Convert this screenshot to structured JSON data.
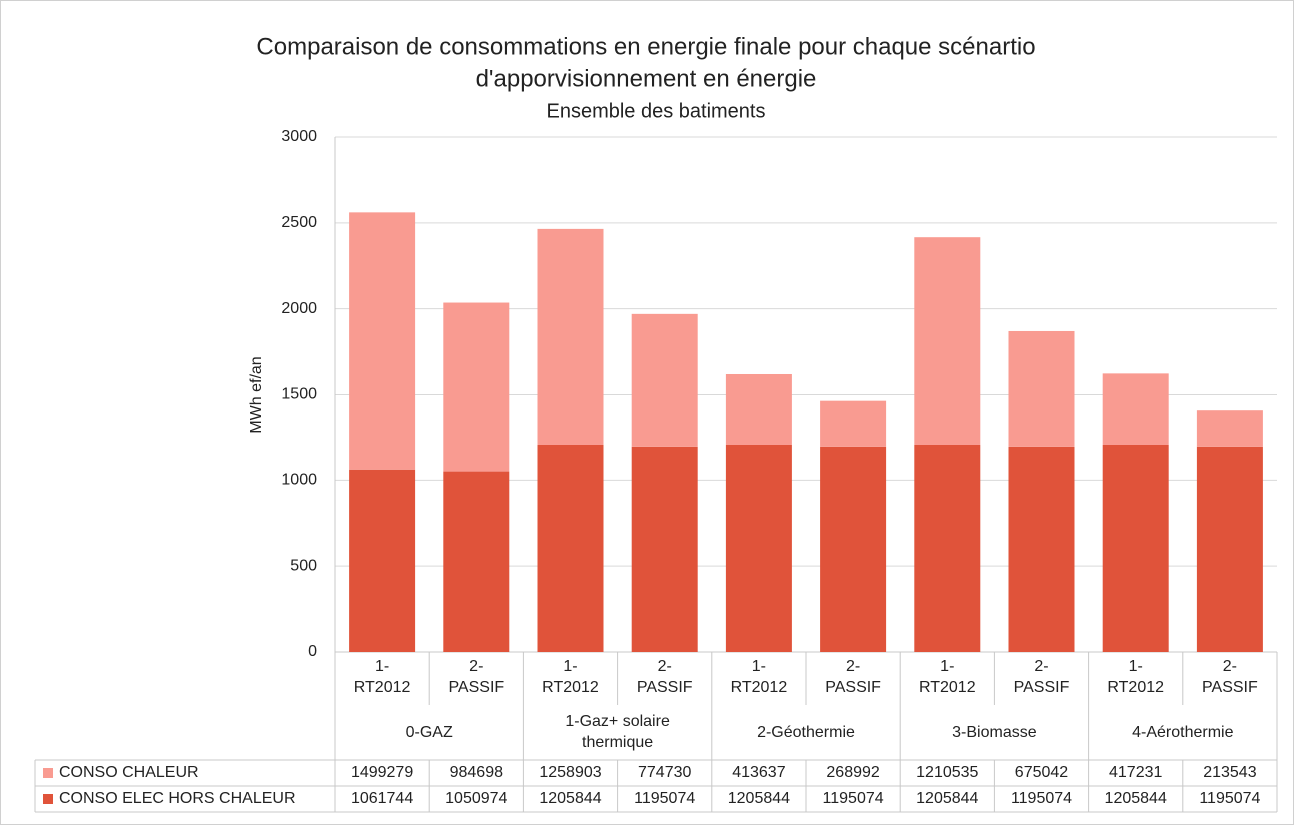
{
  "chart_data": {
    "type": "bar",
    "stacked": true,
    "title": [
      "Comparaison de consommations en energie finale pour chaque scénartio",
      "d'apporvisionnement en énergie"
    ],
    "subtitle": "Ensemble des batiments",
    "y_label": "MWh ef/an",
    "categories": [
      "1- RT2012",
      "2- PASSIF",
      "1- RT2012",
      "2- PASSIF",
      "1- RT2012",
      "2- PASSIF",
      "1- RT2012",
      "2- PASSIF",
      "1- RT2012",
      "2- PASSIF"
    ],
    "groups": [
      "0-GAZ",
      "1-Gaz+ solaire thermique",
      "2-Géothermie",
      "3-Biomasse",
      "4-Aérothermie"
    ],
    "series": [
      {
        "name": "CONSO CHALEUR",
        "color": "#f99b91",
        "values": [
          1499.279,
          984.698,
          1258.903,
          774.73,
          413.637,
          268.992,
          1210.535,
          675.042,
          417.231,
          213.543
        ],
        "value_labels": [
          "1499279",
          "984698",
          "1258903",
          "774730",
          "413637",
          "268992",
          "1210535",
          "675042",
          "417231",
          "213543"
        ]
      },
      {
        "name": "CONSO ELEC HORS CHALEUR",
        "color": "#e0533a",
        "values": [
          1061.744,
          1050.974,
          1205.844,
          1195.074,
          1205.844,
          1195.074,
          1205.844,
          1195.074,
          1205.844,
          1195.074
        ],
        "value_labels": [
          "1061744",
          "1050974",
          "1205844",
          "1195074",
          "1205844",
          "1195074",
          "1205844",
          "1195074",
          "1205844",
          "1195074"
        ]
      }
    ],
    "ylim": [
      0,
      3000
    ],
    "yticks": [
      0,
      500,
      1000,
      1500,
      2000,
      2500,
      3000
    ],
    "grid": true
  }
}
